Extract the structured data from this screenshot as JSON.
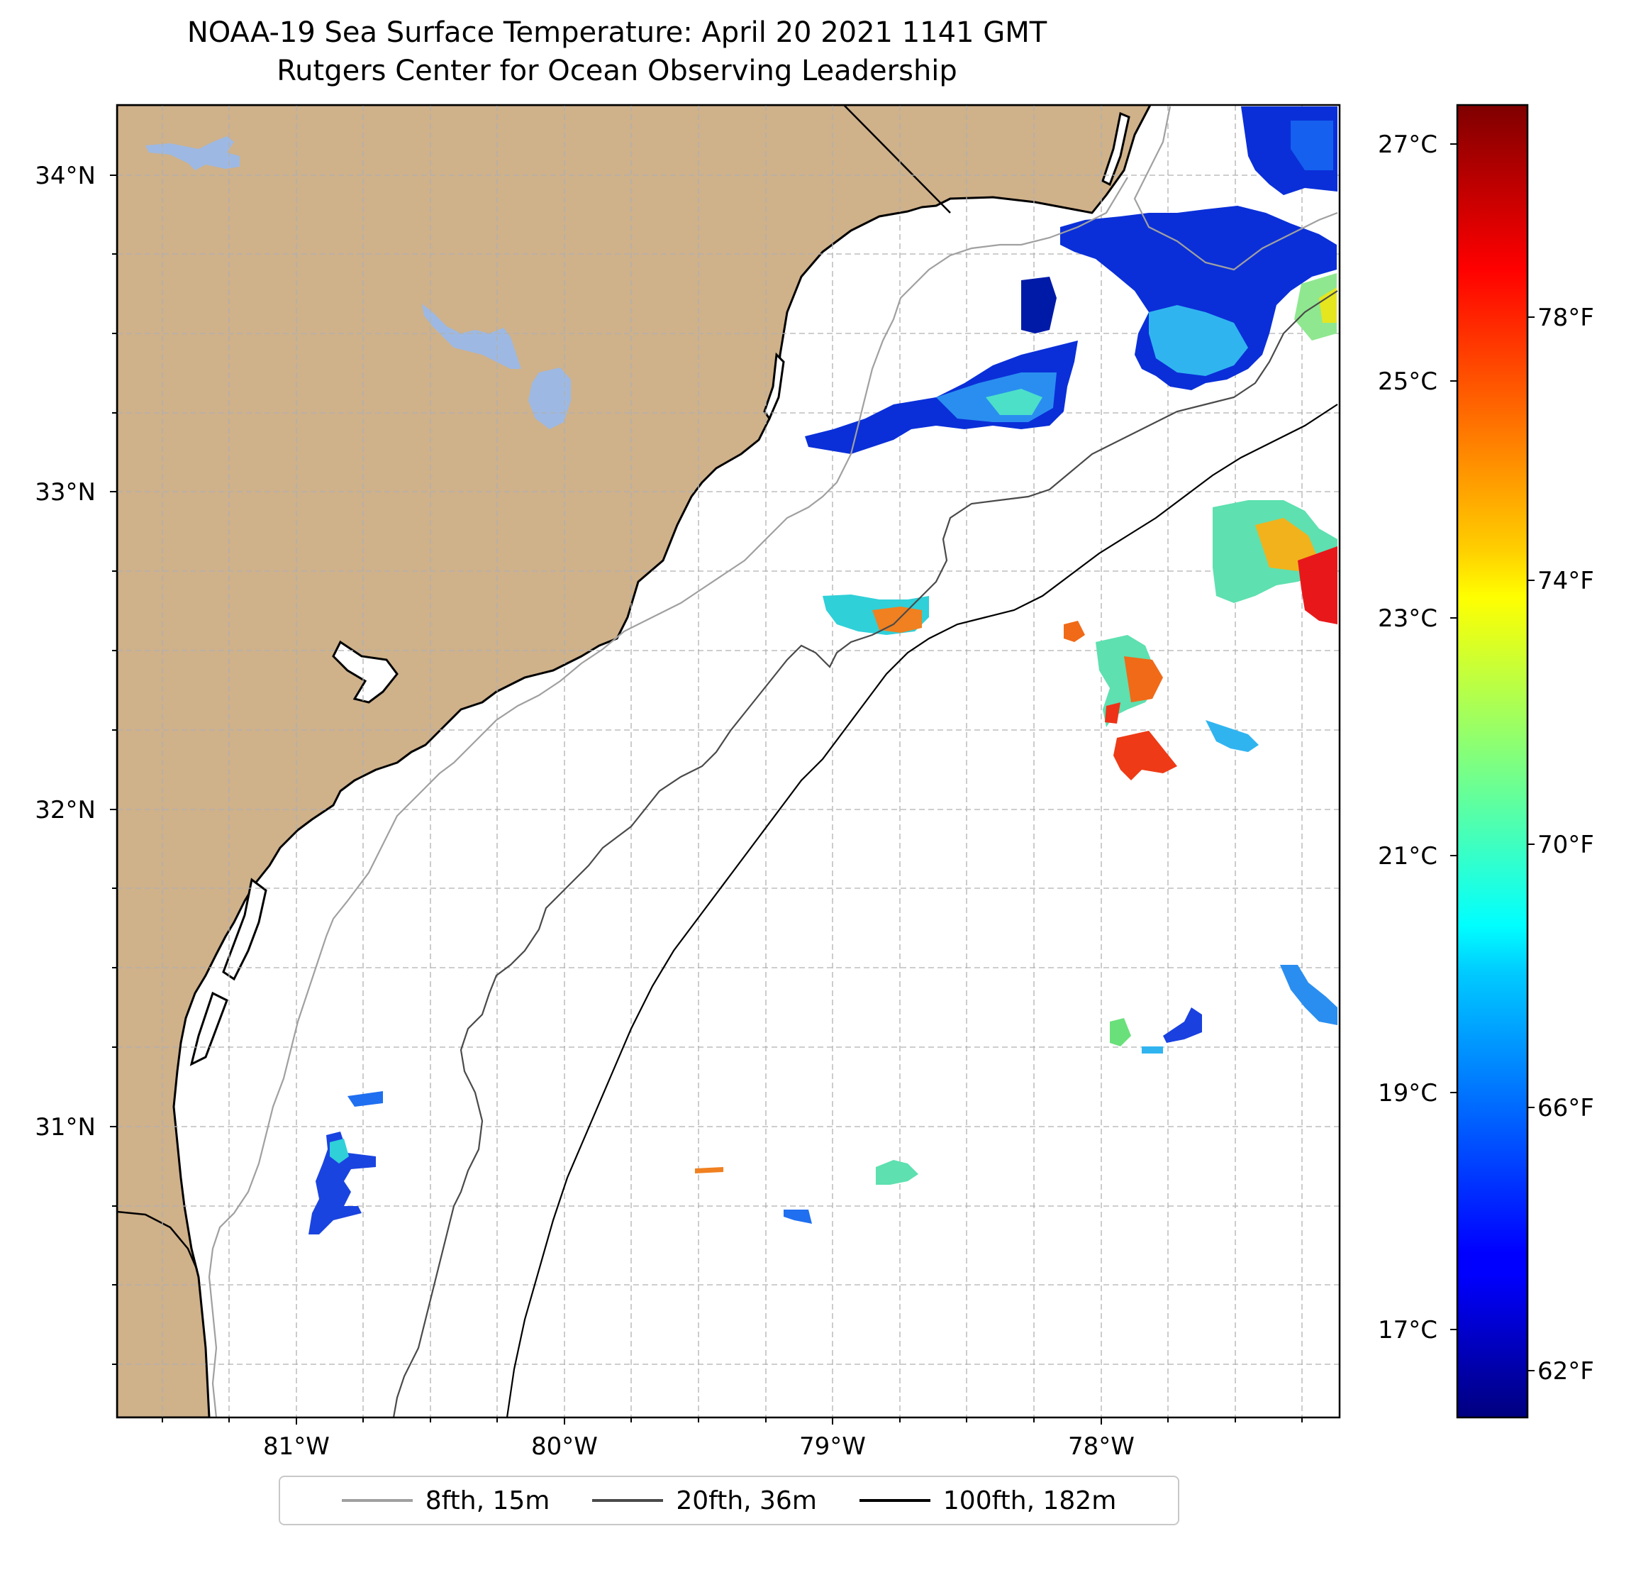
{
  "title": "NOAA-19 Sea Surface Temperature: April 20 2021 1141 GMT",
  "subtitle": "Rutgers Center for Ocean Observing Leadership",
  "map": {
    "lat_labels": [
      "34°N",
      "33°N",
      "32°N",
      "31°N"
    ],
    "lon_labels": [
      "81°W",
      "80°W",
      "79°W",
      "78°W"
    ],
    "colors": {
      "land": "#cfb18a",
      "lake": "#9db9e3",
      "ocean": "#ffffff",
      "grid": "#b0b0b0",
      "isobath_8fth": "#a0a0a0",
      "isobath_20fth": "#4a4a4a",
      "isobath_100fth": "#000000"
    }
  },
  "colorbar": {
    "celsius_labels": [
      "27°C",
      "25°C",
      "23°C",
      "21°C",
      "19°C",
      "17°C"
    ],
    "fahrenheit_labels": [
      "78°F",
      "74°F",
      "70°F",
      "66°F",
      "62°F"
    ],
    "colormap": "jet"
  },
  "legend": {
    "items": [
      {
        "label": "8fth, 15m",
        "color": "#a0a0a0"
      },
      {
        "label": "20fth, 36m",
        "color": "#4a4a4a"
      },
      {
        "label": "100fth, 182m",
        "color": "#000000"
      }
    ]
  }
}
